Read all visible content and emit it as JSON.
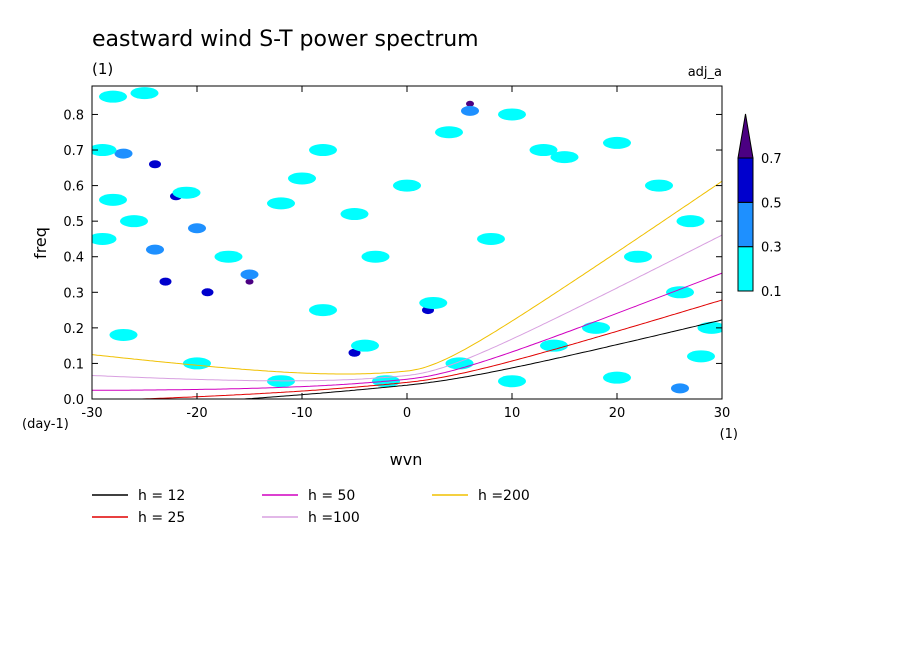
{
  "chart_data": {
    "type": "heatmap",
    "title": "eastward wind S-T power spectrum",
    "subtitle": "(1)",
    "tag": "adj_a",
    "xlabel": "wvn",
    "ylabel": "freq",
    "x_unit": "(1)",
    "y_unit": "(day-1)",
    "xlim": [
      -30,
      30
    ],
    "ylim": [
      0,
      0.88
    ],
    "x_ticks": [
      -30,
      -20,
      -10,
      0,
      10,
      20,
      30
    ],
    "x_tick_labels": [
      "-30",
      "-20",
      "-10",
      "0",
      "10",
      "20",
      "30"
    ],
    "y_ticks": [
      0,
      0.1,
      0.2,
      0.3,
      0.4,
      0.5,
      0.6,
      0.7,
      0.8
    ],
    "y_tick_labels": [
      "0.0",
      "0.1",
      "0.2",
      "0.3",
      "0.4",
      "0.5",
      "0.6",
      "0.7",
      "0.8"
    ],
    "colorbar": {
      "levels": [
        0.1,
        0.3,
        0.5,
        0.7
      ],
      "level_labels": [
        "0.1",
        "0.3",
        "0.5",
        "0.7"
      ],
      "colors": [
        "#00ffff",
        "#1e90ff",
        "#0000cd",
        "#4b0082"
      ]
    },
    "contour_patches": [
      {
        "x": -28,
        "y": 0.85,
        "level": 0
      },
      {
        "x": -25,
        "y": 0.86,
        "level": 0
      },
      {
        "x": -27,
        "y": 0.69,
        "level": 1
      },
      {
        "x": -29,
        "y": 0.7,
        "level": 0
      },
      {
        "x": -24,
        "y": 0.66,
        "level": 2
      },
      {
        "x": -22,
        "y": 0.57,
        "level": 2
      },
      {
        "x": -21,
        "y": 0.58,
        "level": 0
      },
      {
        "x": -20,
        "y": 0.48,
        "level": 1
      },
      {
        "x": -24,
        "y": 0.42,
        "level": 1
      },
      {
        "x": -23,
        "y": 0.33,
        "level": 2
      },
      {
        "x": -15,
        "y": 0.33,
        "level": 3
      },
      {
        "x": -15,
        "y": 0.35,
        "level": 1
      },
      {
        "x": -19,
        "y": 0.3,
        "level": 2
      },
      {
        "x": -17,
        "y": 0.4,
        "level": 0
      },
      {
        "x": -28,
        "y": 0.56,
        "level": 0
      },
      {
        "x": -26,
        "y": 0.5,
        "level": 0
      },
      {
        "x": -29,
        "y": 0.45,
        "level": 0
      },
      {
        "x": -12,
        "y": 0.55,
        "level": 0
      },
      {
        "x": -10,
        "y": 0.62,
        "level": 0
      },
      {
        "x": -8,
        "y": 0.7,
        "level": 0
      },
      {
        "x": -5,
        "y": 0.52,
        "level": 0
      },
      {
        "x": -3,
        "y": 0.4,
        "level": 0
      },
      {
        "x": -5,
        "y": 0.13,
        "level": 2
      },
      {
        "x": -4,
        "y": 0.15,
        "level": 0
      },
      {
        "x": 2,
        "y": 0.25,
        "level": 2
      },
      {
        "x": 2.5,
        "y": 0.27,
        "level": 0
      },
      {
        "x": 6,
        "y": 0.83,
        "level": 3
      },
      {
        "x": 6,
        "y": 0.81,
        "level": 1
      },
      {
        "x": 4,
        "y": 0.75,
        "level": 0
      },
      {
        "x": 10,
        "y": 0.8,
        "level": 0
      },
      {
        "x": 15,
        "y": 0.68,
        "level": 0
      },
      {
        "x": 13,
        "y": 0.7,
        "level": 0
      },
      {
        "x": 20,
        "y": 0.72,
        "level": 0
      },
      {
        "x": 24,
        "y": 0.6,
        "level": 0
      },
      {
        "x": 27,
        "y": 0.5,
        "level": 0
      },
      {
        "x": 22,
        "y": 0.4,
        "level": 0
      },
      {
        "x": 26,
        "y": 0.3,
        "level": 0
      },
      {
        "x": 18,
        "y": 0.2,
        "level": 0
      },
      {
        "x": 14,
        "y": 0.15,
        "level": 0
      },
      {
        "x": 10,
        "y": 0.05,
        "level": 0
      },
      {
        "x": 20,
        "y": 0.06,
        "level": 0
      },
      {
        "x": 26,
        "y": 0.03,
        "level": 1
      },
      {
        "x": 28,
        "y": 0.12,
        "level": 0
      },
      {
        "x": -12,
        "y": 0.05,
        "level": 0
      },
      {
        "x": -20,
        "y": 0.1,
        "level": 0
      },
      {
        "x": -27,
        "y": 0.18,
        "level": 0
      },
      {
        "x": -8,
        "y": 0.25,
        "level": 0
      },
      {
        "x": 0,
        "y": 0.6,
        "level": 0
      },
      {
        "x": 8,
        "y": 0.45,
        "level": 0
      },
      {
        "x": -2,
        "y": 0.05,
        "level": 0
      },
      {
        "x": 5,
        "y": 0.1,
        "level": 0
      },
      {
        "x": 29,
        "y": 0.2,
        "level": 0
      }
    ],
    "series": [
      {
        "name": "h = 12",
        "color": "#000000",
        "h": 12
      },
      {
        "name": "h = 25",
        "color": "#e00000",
        "h": 25
      },
      {
        "name": "h = 50",
        "color": "#d000c0",
        "h": 50
      },
      {
        "name": "h =100",
        "color": "#d8a0e0",
        "h": 100
      },
      {
        "name": "h =200",
        "color": "#f0c000",
        "h": 200
      }
    ],
    "legend_placement": "bottom",
    "grid": false
  }
}
